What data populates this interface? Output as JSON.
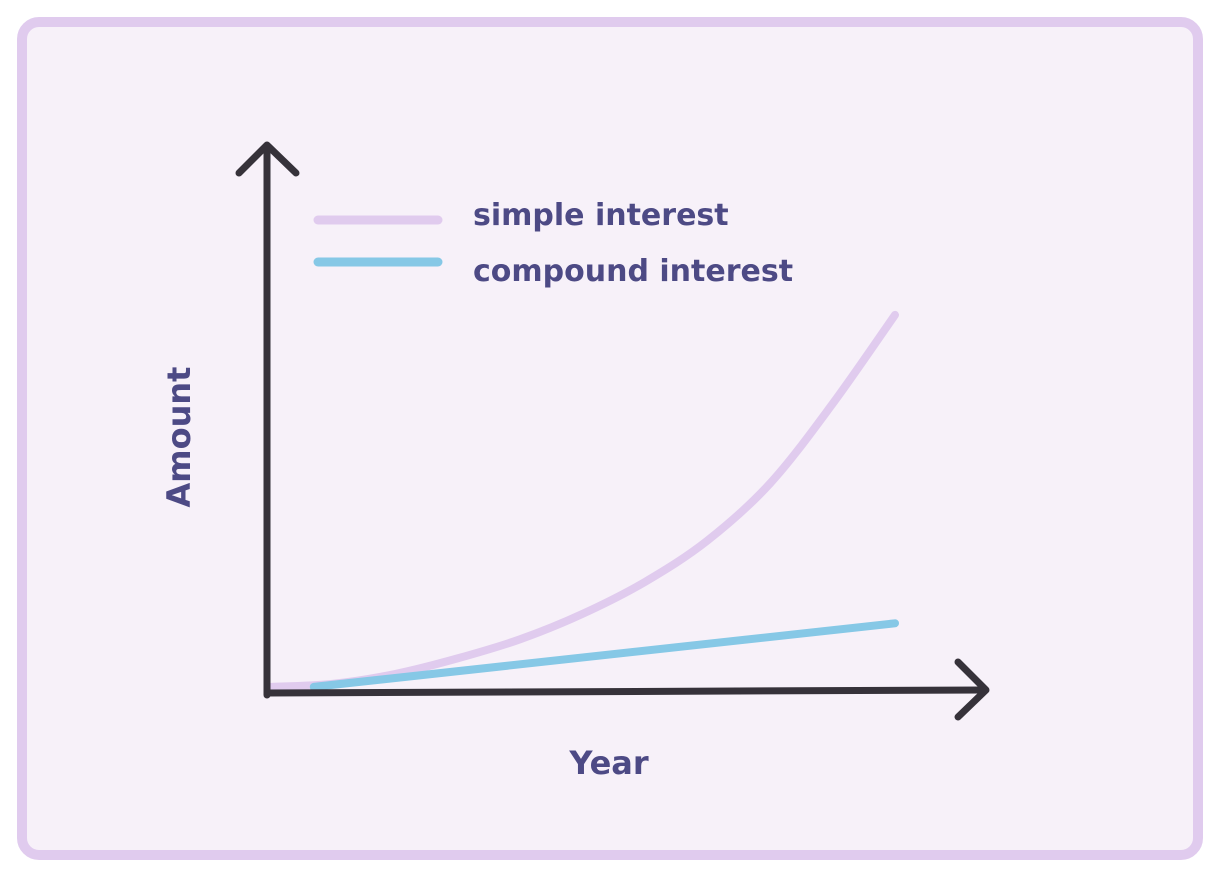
{
  "colors": {
    "frame_border": "#e0cbee",
    "frame_fill": "#f7f1f9",
    "axis": "#36323a",
    "text": "#4d4a85",
    "simple_interest": "#e0cbee",
    "compound_interest": "#86c8e6"
  },
  "chart_data": {
    "type": "line",
    "title": "",
    "xlabel": "Year",
    "ylabel": "Amount",
    "grid": false,
    "legend_position": "top-left",
    "xlim": [
      0,
      10
    ],
    "ylim": [
      0,
      10
    ],
    "series": [
      {
        "name": "simple interest",
        "color": "#e0cbee",
        "shape": "exponential",
        "x": [
          0,
          1,
          2,
          3,
          4,
          5,
          6,
          7,
          8,
          9,
          10
        ],
        "y": [
          0.07,
          0.14,
          0.36,
          0.71,
          1.14,
          1.71,
          2.43,
          3.36,
          4.64,
          6.43,
          8.43
        ]
      },
      {
        "name": "compound interest",
        "color": "#86c8e6",
        "shape": "linear",
        "x": [
          0.7,
          10
        ],
        "y": [
          0.07,
          1.5
        ]
      }
    ]
  }
}
